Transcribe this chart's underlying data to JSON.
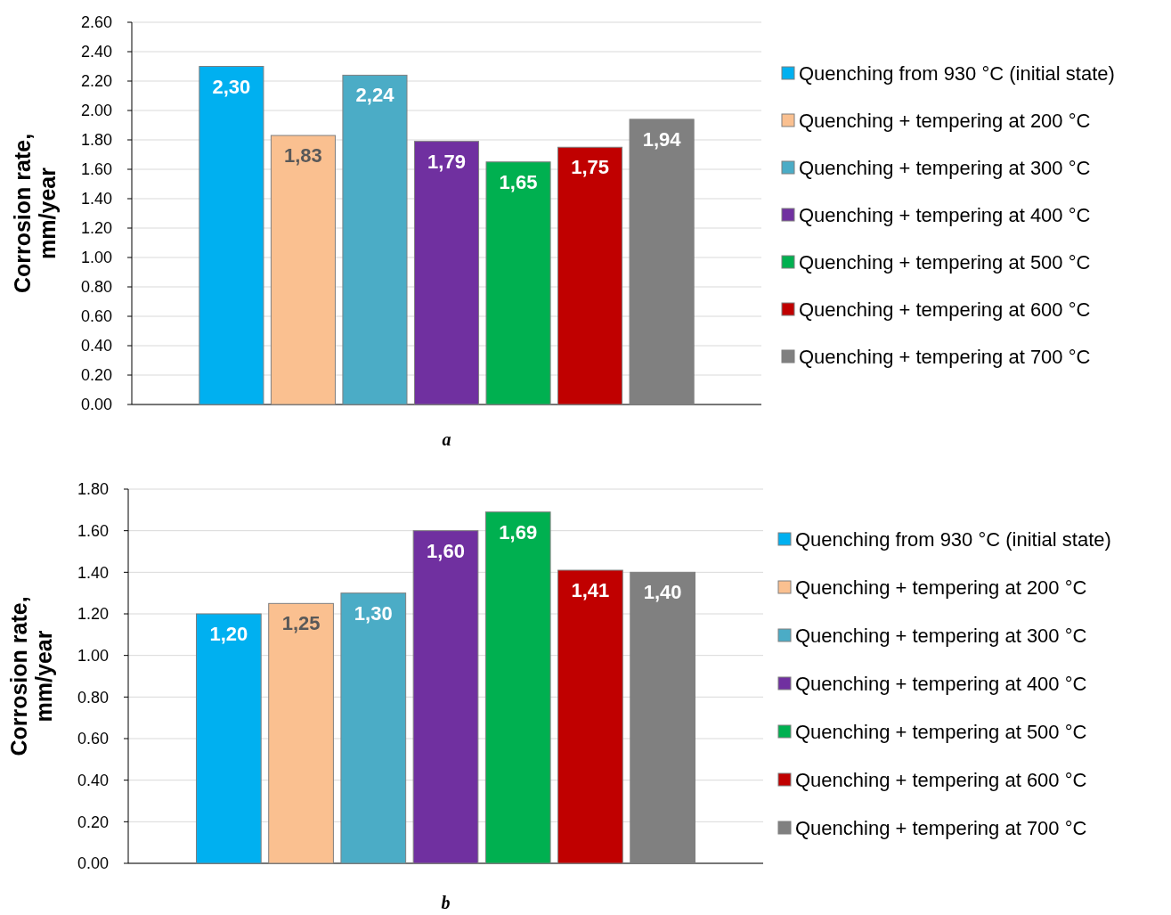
{
  "chart_data": [
    {
      "type": "bar",
      "title": "a",
      "ylabel": "Corrosion rate, mm/year",
      "categories": [
        null
      ],
      "ylim": [
        0,
        2.6
      ],
      "yticks": [
        {
          "value": 0,
          "label": "0.00"
        },
        {
          "value": 0.2,
          "label": "0.20"
        },
        {
          "value": 0.4,
          "label": "0.40"
        },
        {
          "value": 0.6,
          "label": "0.60"
        },
        {
          "value": 0.8,
          "label": "0.80"
        },
        {
          "value": 1,
          "label": "1.00"
        },
        {
          "value": 1.2,
          "label": "1.20"
        },
        {
          "value": 1.4,
          "label": "1.40"
        },
        {
          "value": 1.6,
          "label": "1.60"
        },
        {
          "value": 1.8,
          "label": "1.80"
        },
        {
          "value": 2,
          "label": "2.00"
        },
        {
          "value": 2.2,
          "label": "2.20"
        },
        {
          "value": 2.4,
          "label": "2.40"
        },
        {
          "value": 2.6,
          "label": "2.60"
        }
      ],
      "grid": "y",
      "legend": "right",
      "series": [
        {
          "name": "Quenching from 930 °C (initial state)",
          "color": "#00b0f0",
          "values": [
            2.3
          ],
          "value_labels": [
            "2,30"
          ]
        },
        {
          "name": "Quenching + tempering at 200 °C",
          "color": "#fac090",
          "values": [
            1.83
          ],
          "value_labels": [
            "1,83"
          ]
        },
        {
          "name": "Quenching + tempering at 300 °C",
          "color": "#4bacc6",
          "values": [
            2.24
          ],
          "value_labels": [
            "2,24"
          ]
        },
        {
          "name": "Quenching + tempering at 400 °C",
          "color": "#7030a0",
          "values": [
            1.79
          ],
          "value_labels": [
            "1,79"
          ]
        },
        {
          "name": "Quenching + tempering at 500 °C",
          "color": "#00b050",
          "values": [
            1.65
          ],
          "value_labels": [
            "1,65"
          ]
        },
        {
          "name": "Quenching + tempering at 600 °C",
          "color": "#c00000",
          "values": [
            1.75
          ],
          "value_labels": [
            "1,75"
          ]
        },
        {
          "name": "Quenching + tempering at 700 °C",
          "color": "#808080",
          "values": [
            1.94
          ],
          "value_labels": [
            "1,94"
          ]
        }
      ]
    },
    {
      "type": "bar",
      "title": "b",
      "ylabel": "Corrosion rate, mm/year",
      "categories": [
        null
      ],
      "ylim": [
        0,
        1.8
      ],
      "yticks": [
        {
          "value": 0,
          "label": "0.00"
        },
        {
          "value": 0.2,
          "label": "0.20"
        },
        {
          "value": 0.4,
          "label": "0.40"
        },
        {
          "value": 0.6,
          "label": "0.60"
        },
        {
          "value": 0.8,
          "label": "0.80"
        },
        {
          "value": 1,
          "label": "1.00"
        },
        {
          "value": 1.2,
          "label": "1.20"
        },
        {
          "value": 1.4,
          "label": "1.40"
        },
        {
          "value": 1.6,
          "label": "1.60"
        },
        {
          "value": 1.8,
          "label": "1.80"
        }
      ],
      "grid": "y",
      "legend": "right",
      "series": [
        {
          "name": "Quenching from 930 °C (initial state)",
          "color": "#00b0f0",
          "values": [
            1.2
          ],
          "value_labels": [
            "1,20"
          ]
        },
        {
          "name": "Quenching + tempering at 200 °C",
          "color": "#fac090",
          "values": [
            1.25
          ],
          "value_labels": [
            "1,25"
          ]
        },
        {
          "name": "Quenching + tempering at 300 °C",
          "color": "#4bacc6",
          "values": [
            1.3
          ],
          "value_labels": [
            "1,30"
          ]
        },
        {
          "name": "Quenching + tempering at 400 °C",
          "color": "#7030a0",
          "values": [
            1.6
          ],
          "value_labels": [
            "1,60"
          ]
        },
        {
          "name": "Quenching + tempering at 500 °C",
          "color": "#00b050",
          "values": [
            1.69
          ],
          "value_labels": [
            "1,69"
          ]
        },
        {
          "name": "Quenching + tempering at 600 °C",
          "color": "#c00000",
          "values": [
            1.41
          ],
          "value_labels": [
            "1,41"
          ]
        },
        {
          "name": "Quenching + tempering at 700 °C",
          "color": "#808080",
          "values": [
            1.4
          ],
          "value_labels": [
            "1,40"
          ]
        }
      ]
    }
  ]
}
